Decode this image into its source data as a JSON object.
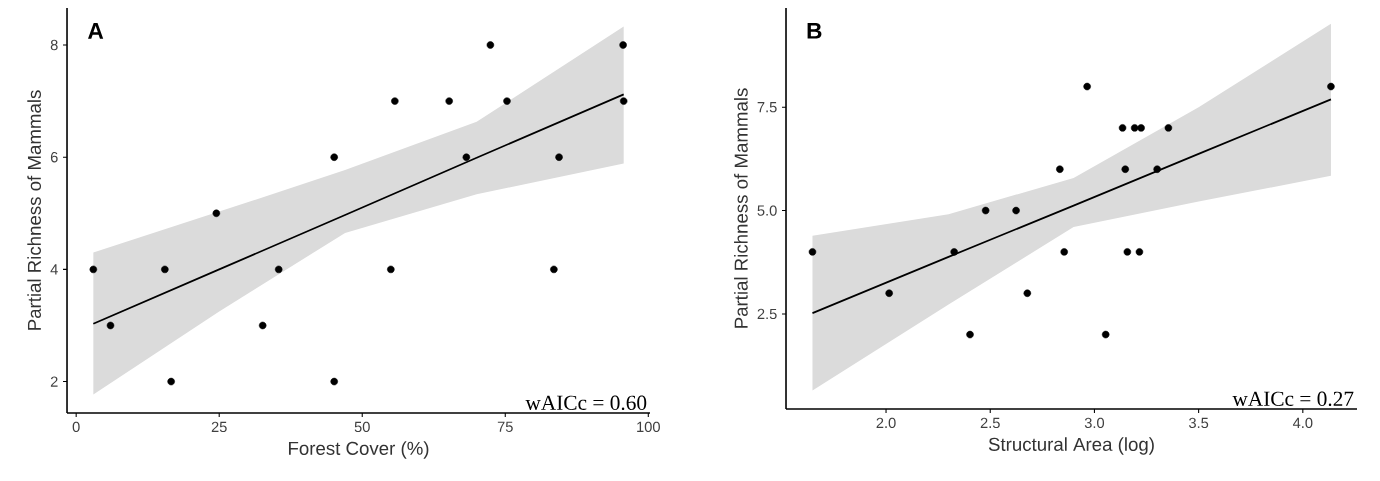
{
  "chart_data": [
    {
      "type": "scatter",
      "xlabel": "Forest Cover (%)",
      "ylabel": "Partial Richness of Mammals",
      "xlim": [
        -1.6,
        100.3
      ],
      "ylim": [
        1.44,
        8.66
      ],
      "xticks": [
        0,
        25,
        50,
        75,
        100
      ],
      "yticks": [
        2,
        4,
        6,
        8
      ],
      "grid": false,
      "annotations": [
        "A",
        "wAICc = 0.60"
      ],
      "series": [
        {
          "type": "scatter",
          "color": "#000000",
          "marker": "circle",
          "x": [
            3.0,
            6.0,
            15.5,
            16.6,
            24.5,
            32.6,
            35.4,
            45.1,
            45.1,
            55.0,
            55.7,
            65.2,
            68.2,
            72.4,
            75.3,
            83.5,
            84.4,
            95.6,
            95.7
          ],
          "values": [
            4,
            3,
            4,
            2,
            5,
            3,
            4,
            6,
            2,
            4,
            7,
            7,
            6,
            8,
            7,
            4,
            6,
            8,
            7
          ]
        },
        {
          "type": "line",
          "color": "#000000",
          "marker": "none",
          "line_style": "solid",
          "x": [
            3,
            25,
            47,
            70,
            95.7
          ],
          "values": [
            3.03,
            4.0,
            4.97,
            5.99,
            7.12
          ],
          "lower": [
            1.77,
            3.25,
            4.65,
            5.34,
            5.89
          ],
          "upper": [
            4.3,
            5.03,
            5.77,
            6.63,
            8.33
          ]
        }
      ]
    },
    {
      "type": "scatter",
      "xlabel": "Structural Area (log)",
      "ylabel": "Partial Richness of Mammals",
      "xlim": [
        1.52,
        4.26
      ],
      "ylim": [
        0.2,
        9.9
      ],
      "xticks": [
        {
          "value": 2,
          "label": "2.0"
        },
        {
          "value": 2.5,
          "label": "2.5"
        },
        {
          "value": 3,
          "label": "3.0"
        },
        {
          "value": 3.5,
          "label": "3.5"
        },
        {
          "value": 4,
          "label": "4.0"
        }
      ],
      "yticks": [
        {
          "value": 2.5,
          "label": "2.5"
        },
        {
          "value": 5,
          "label": "5.0"
        },
        {
          "value": 7.5,
          "label": "7.5"
        }
      ],
      "grid": false,
      "annotations": [
        "B",
        "wAICc = 0.27"
      ],
      "series": [
        {
          "type": "scatter",
          "color": "#000000",
          "marker": "circle",
          "x": [
            1.647,
            2.015,
            2.327,
            2.403,
            2.478,
            2.624,
            2.678,
            2.834,
            2.855,
            2.965,
            3.054,
            3.135,
            3.148,
            3.158,
            3.193,
            3.216,
            3.224,
            3.301,
            3.355,
            4.135
          ],
          "values": [
            4,
            3,
            4,
            2,
            5,
            5,
            3,
            6,
            4,
            8,
            2,
            7,
            6,
            4,
            7,
            4,
            7,
            6,
            7,
            8
          ]
        },
        {
          "type": "line",
          "color": "#000000",
          "marker": "none",
          "line_style": "solid",
          "x": [
            1.647,
            2.3,
            2.9,
            3.5,
            4.135
          ],
          "values": [
            2.52,
            3.88,
            5.12,
            6.37,
            7.69
          ],
          "lower": [
            0.65,
            2.73,
            4.6,
            5.22,
            5.84
          ],
          "upper": [
            4.39,
            4.91,
            5.79,
            7.5,
            9.52
          ]
        }
      ]
    }
  ]
}
